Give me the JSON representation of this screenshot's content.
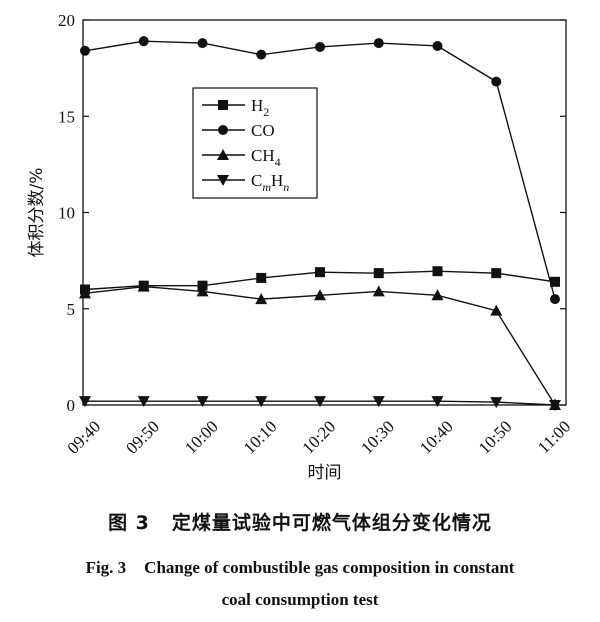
{
  "caption": {
    "cn_fig": "图 3",
    "cn_title": "定煤量试验中可燃气体组分变化情况",
    "en_fig": "Fig. 3",
    "en_title_line1": "Change of combustible gas composition in constant",
    "en_title_line2": "coal consumption test"
  },
  "chart_data": {
    "type": "line",
    "xlabel": "时间",
    "ylabel": "体积分数/%",
    "categories": [
      "09:40",
      "09:50",
      "10:00",
      "10:10",
      "10:20",
      "10:30",
      "10:40",
      "10:50",
      "11:00"
    ],
    "yticks": [
      "0",
      "5",
      "10",
      "15",
      "20"
    ],
    "ylim": [
      0,
      20
    ],
    "legend_position": "upper-center",
    "series": [
      {
        "name": "H2",
        "label_main": "H",
        "label_sub": "2",
        "marker": "square",
        "values": [
          6.0,
          6.2,
          6.2,
          6.6,
          6.9,
          6.85,
          6.95,
          6.85,
          6.4
        ]
      },
      {
        "name": "CO",
        "label_main": "CO",
        "label_sub": "",
        "marker": "circle",
        "values": [
          18.4,
          18.9,
          18.8,
          18.2,
          18.6,
          18.8,
          18.65,
          16.8,
          5.5
        ]
      },
      {
        "name": "CH4",
        "label_main": "CH",
        "label_sub": "4",
        "marker": "triangle-up",
        "values": [
          5.8,
          6.15,
          5.9,
          5.5,
          5.7,
          5.9,
          5.7,
          4.9,
          0.0
        ]
      },
      {
        "name": "CmHn",
        "label_c": "C",
        "label_m": "m",
        "label_h": "H",
        "label_n": "n",
        "marker": "triangle-down",
        "values": [
          0.2,
          0.2,
          0.2,
          0.2,
          0.2,
          0.2,
          0.2,
          0.15,
          0.0
        ]
      }
    ],
    "line_color": "#111111"
  }
}
